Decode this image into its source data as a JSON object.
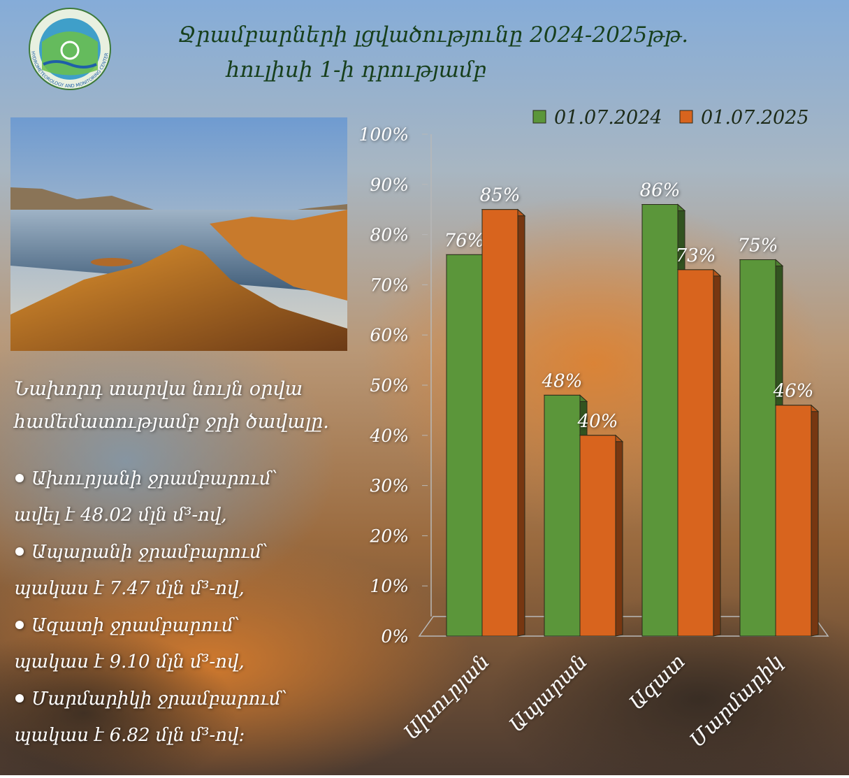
{
  "logo": {
    "caption": "HYDROMETEOROLOGY AND MONITORING CENTER"
  },
  "title_lines": [
    "Ջրամբարների լցվածությունը 2024-2025թթ.",
    "հուլիսի 1-ի դրությամբ"
  ],
  "notes": {
    "heading": [
      "Նախորդ տարվա նույն օրվա",
      "համեմատությամբ ջրի ծավալը."
    ],
    "items": [
      {
        "place": "Ախուրյանի ջրամբարում՝",
        "change": "ավել է 48.02 մլն մ³-ով,"
      },
      {
        "place": "Ապարանի ջրամբարում՝",
        "change": "պակաս է 7.47 մլն մ³-ով,"
      },
      {
        "place": "Ազատի ջրամբարում՝",
        "change": "պակաս է  9.10 մլն մ³-ով,"
      },
      {
        "place": "Մարմարիկի ջրամբարում՝",
        "change": "պակաս է 6.82 մլն մ³-ով։"
      }
    ]
  },
  "chart_data": {
    "type": "bar",
    "categories": [
      "Ախուրյան",
      "Ապարան",
      "Ազատ",
      "Մարմարիկ"
    ],
    "series": [
      {
        "name": "01.07.2024",
        "color": "#5b963a",
        "values": [
          76,
          48,
          86,
          75
        ],
        "value_labels": [
          "76%",
          "48%",
          "86%",
          "75%"
        ]
      },
      {
        "name": "01.07.2025",
        "color": "#d8641e",
        "values": [
          85,
          40,
          73,
          46
        ],
        "value_labels": [
          "85%",
          "40%",
          "73%",
          "46%"
        ]
      }
    ],
    "ylim": [
      0,
      100
    ],
    "yticks": [
      {
        "value": 0,
        "label": "0%"
      },
      {
        "value": 10,
        "label": "10%"
      },
      {
        "value": 20,
        "label": "20%"
      },
      {
        "value": 30,
        "label": "30%"
      },
      {
        "value": 40,
        "label": "40%"
      },
      {
        "value": 50,
        "label": "50%"
      },
      {
        "value": 60,
        "label": "60%"
      },
      {
        "value": 70,
        "label": "70%"
      },
      {
        "value": 80,
        "label": "80%"
      },
      {
        "value": 90,
        "label": "90%"
      },
      {
        "value": 100,
        "label": "100%"
      }
    ],
    "grid": false,
    "legend": "top"
  }
}
